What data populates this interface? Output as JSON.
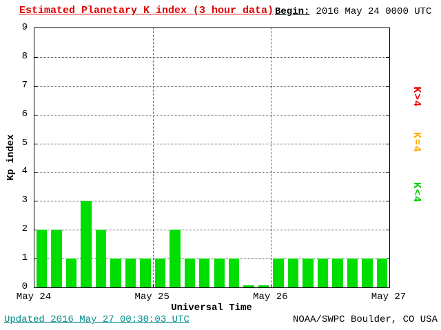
{
  "header": {
    "title": "Estimated Planetary K index (3 hour data)",
    "begin_label": "Begin:",
    "begin_value": "2016 May 24 0000 UTC"
  },
  "legend": [
    {
      "label": "K>4",
      "color": "#ee0000"
    },
    {
      "label": "K=4",
      "color": "#ffaa00"
    },
    {
      "label": "K<4",
      "color": "#00cc00"
    }
  ],
  "footer": {
    "updated": "Updated 2016 May 27 00:30:03 UTC",
    "source": "NOAA/SWPC Boulder, CO USA"
  },
  "colors": {
    "title": "#dd0000",
    "bar": "#00dd00",
    "updated": "#008b8b",
    "axis": "#000000"
  },
  "chart_data": {
    "type": "bar",
    "title": "Estimated Planetary K index (3 hour data)",
    "xlabel": "Universal Time",
    "ylabel": "Kp index",
    "ylim": [
      0,
      9
    ],
    "y_ticks": [
      0,
      1,
      2,
      3,
      4,
      5,
      6,
      7,
      8,
      9
    ],
    "x_ticks": [
      "May 24",
      "May 25",
      "May 26",
      "May 27"
    ],
    "interval_hours": 3,
    "begin": "2016 May 24 0000 UTC",
    "values": [
      2,
      2,
      1,
      3,
      2,
      1,
      1,
      1,
      1,
      2,
      1,
      1,
      1,
      1,
      0,
      0,
      1,
      1,
      1,
      1,
      1,
      1,
      1,
      1
    ],
    "grid": "dotted",
    "legend_position": "right",
    "bar_color": "#00dd00"
  }
}
